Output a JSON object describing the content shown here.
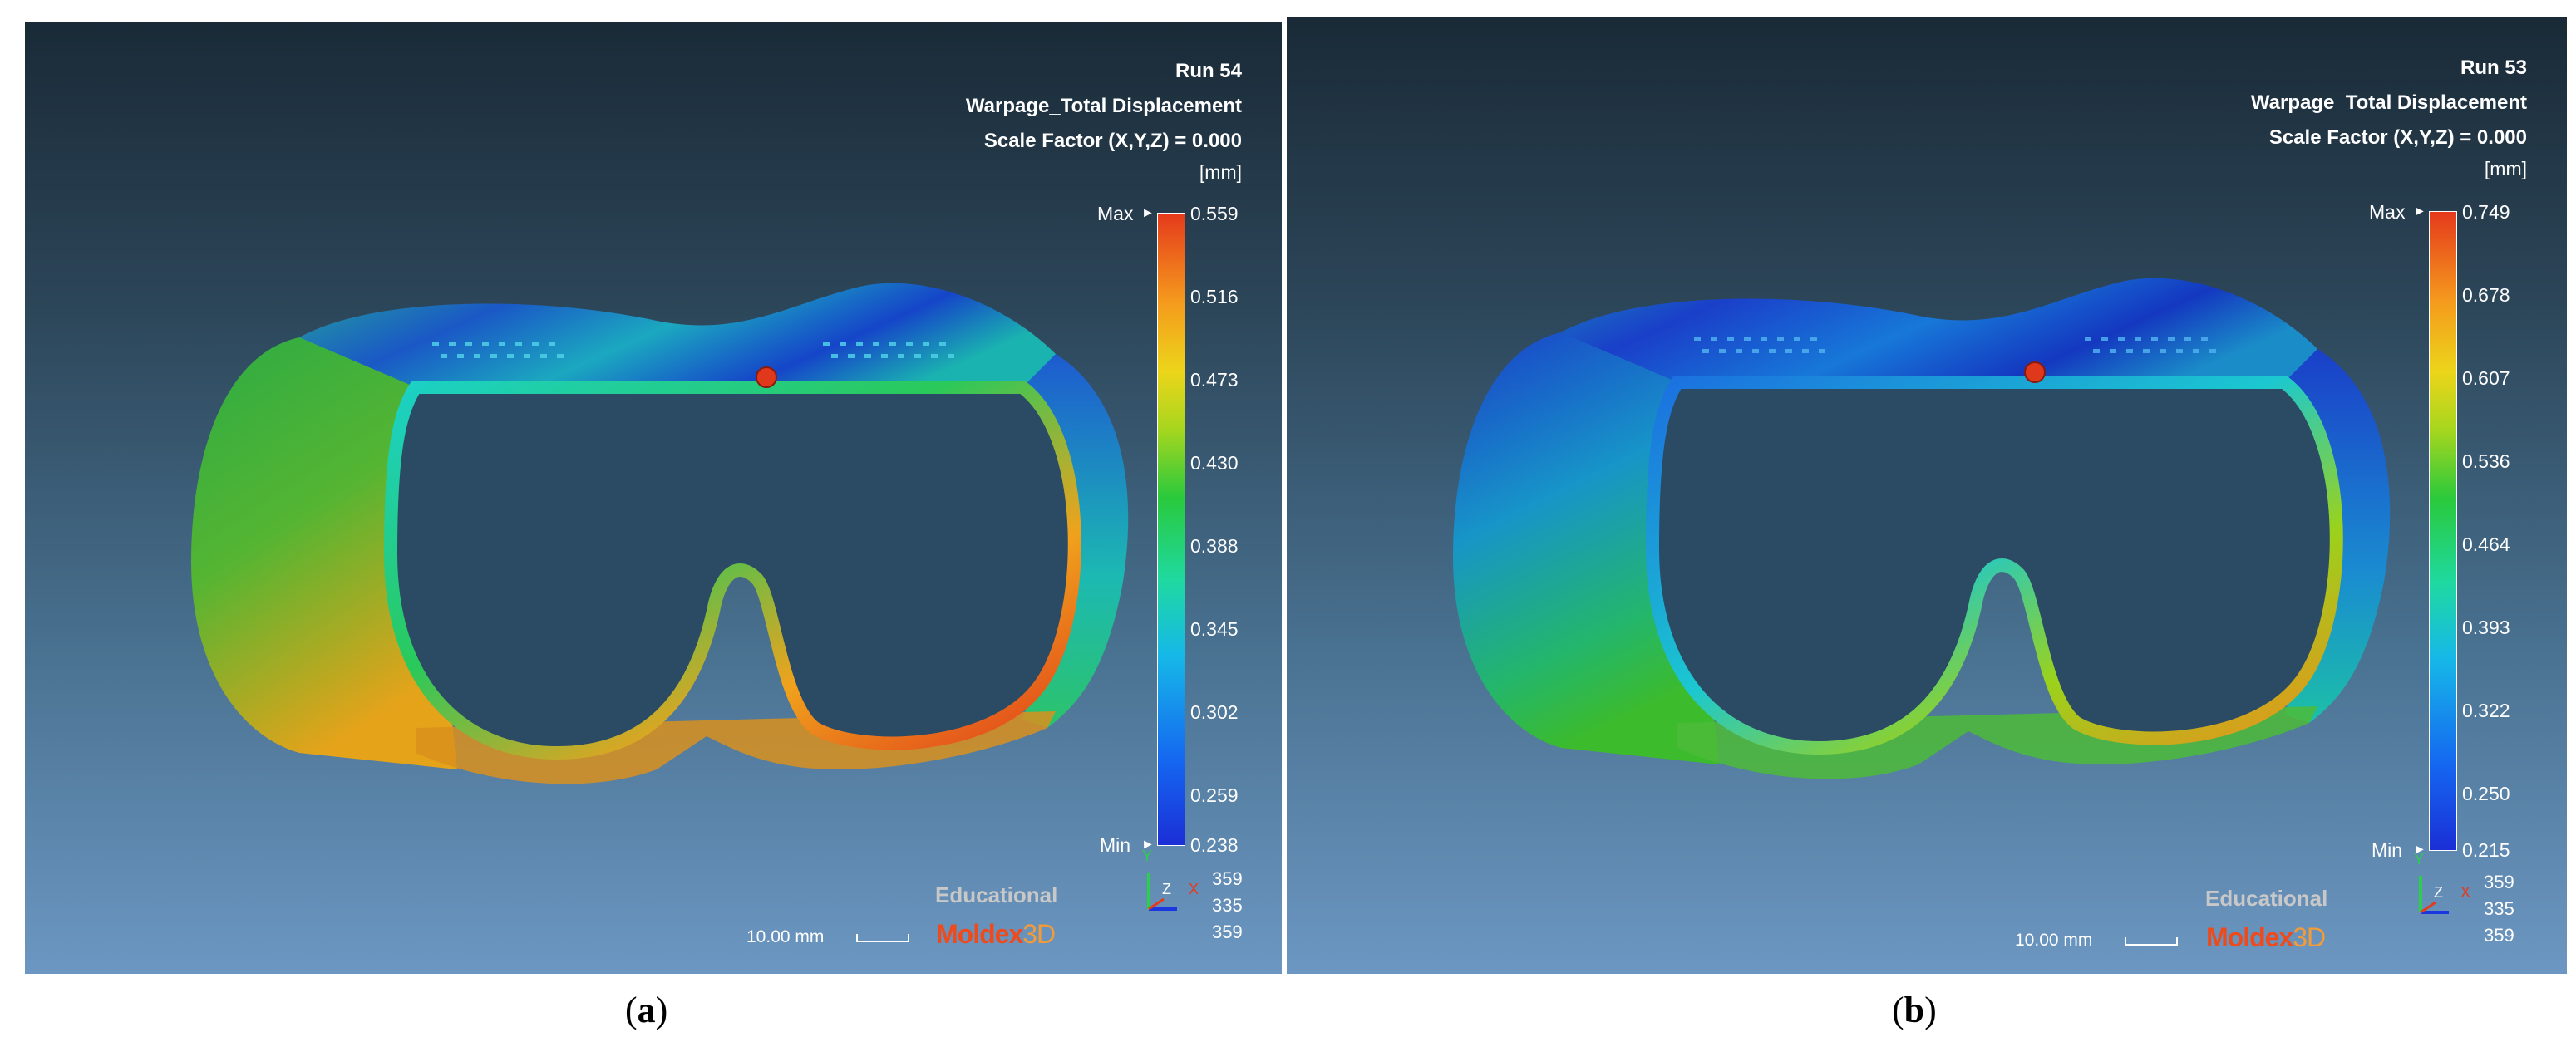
{
  "panels": [
    {
      "id": "a",
      "run": "Run 54",
      "result": "Warpage_Total Displacement",
      "scale_factor": "Scale Factor (X,Y,Z) = 0.000",
      "unit": "[mm]",
      "max_label": "Max",
      "min_label": "Min",
      "legend_ticks": [
        "0.559",
        "0.516",
        "0.473",
        "0.430",
        "0.388",
        "0.345",
        "0.302",
        "0.259",
        "0.238"
      ],
      "watermark": "Educational",
      "brand_main": "Moldex",
      "brand_suffix": "3D",
      "scale_label": "10.00 mm",
      "axis_y": "Y",
      "axis_z": "Z",
      "axis_x": "X",
      "coords": [
        "359",
        "335",
        "359"
      ],
      "caption_letter": "a"
    },
    {
      "id": "b",
      "run": "Run 53",
      "result": "Warpage_Total Displacement",
      "scale_factor": "Scale Factor (X,Y,Z) = 0.000",
      "unit": "[mm]",
      "max_label": "Max",
      "min_label": "Min",
      "legend_ticks": [
        "0.749",
        "0.678",
        "0.607",
        "0.536",
        "0.464",
        "0.393",
        "0.322",
        "0.250",
        "0.215"
      ],
      "watermark": "Educational",
      "brand_main": "Moldex",
      "brand_suffix": "3D",
      "scale_label": "10.00 mm",
      "axis_y": "Y",
      "axis_z": "Z",
      "axis_x": "X",
      "coords": [
        "359",
        "335",
        "359"
      ],
      "caption_letter": "b"
    }
  ],
  "caption_open": "(",
  "caption_close": ")",
  "colors": {
    "accent_red": "#e53a1c",
    "accent_blue": "#1b2fd6",
    "bg_top": "#1a2a37",
    "bg_bottom": "#6c97c2"
  }
}
